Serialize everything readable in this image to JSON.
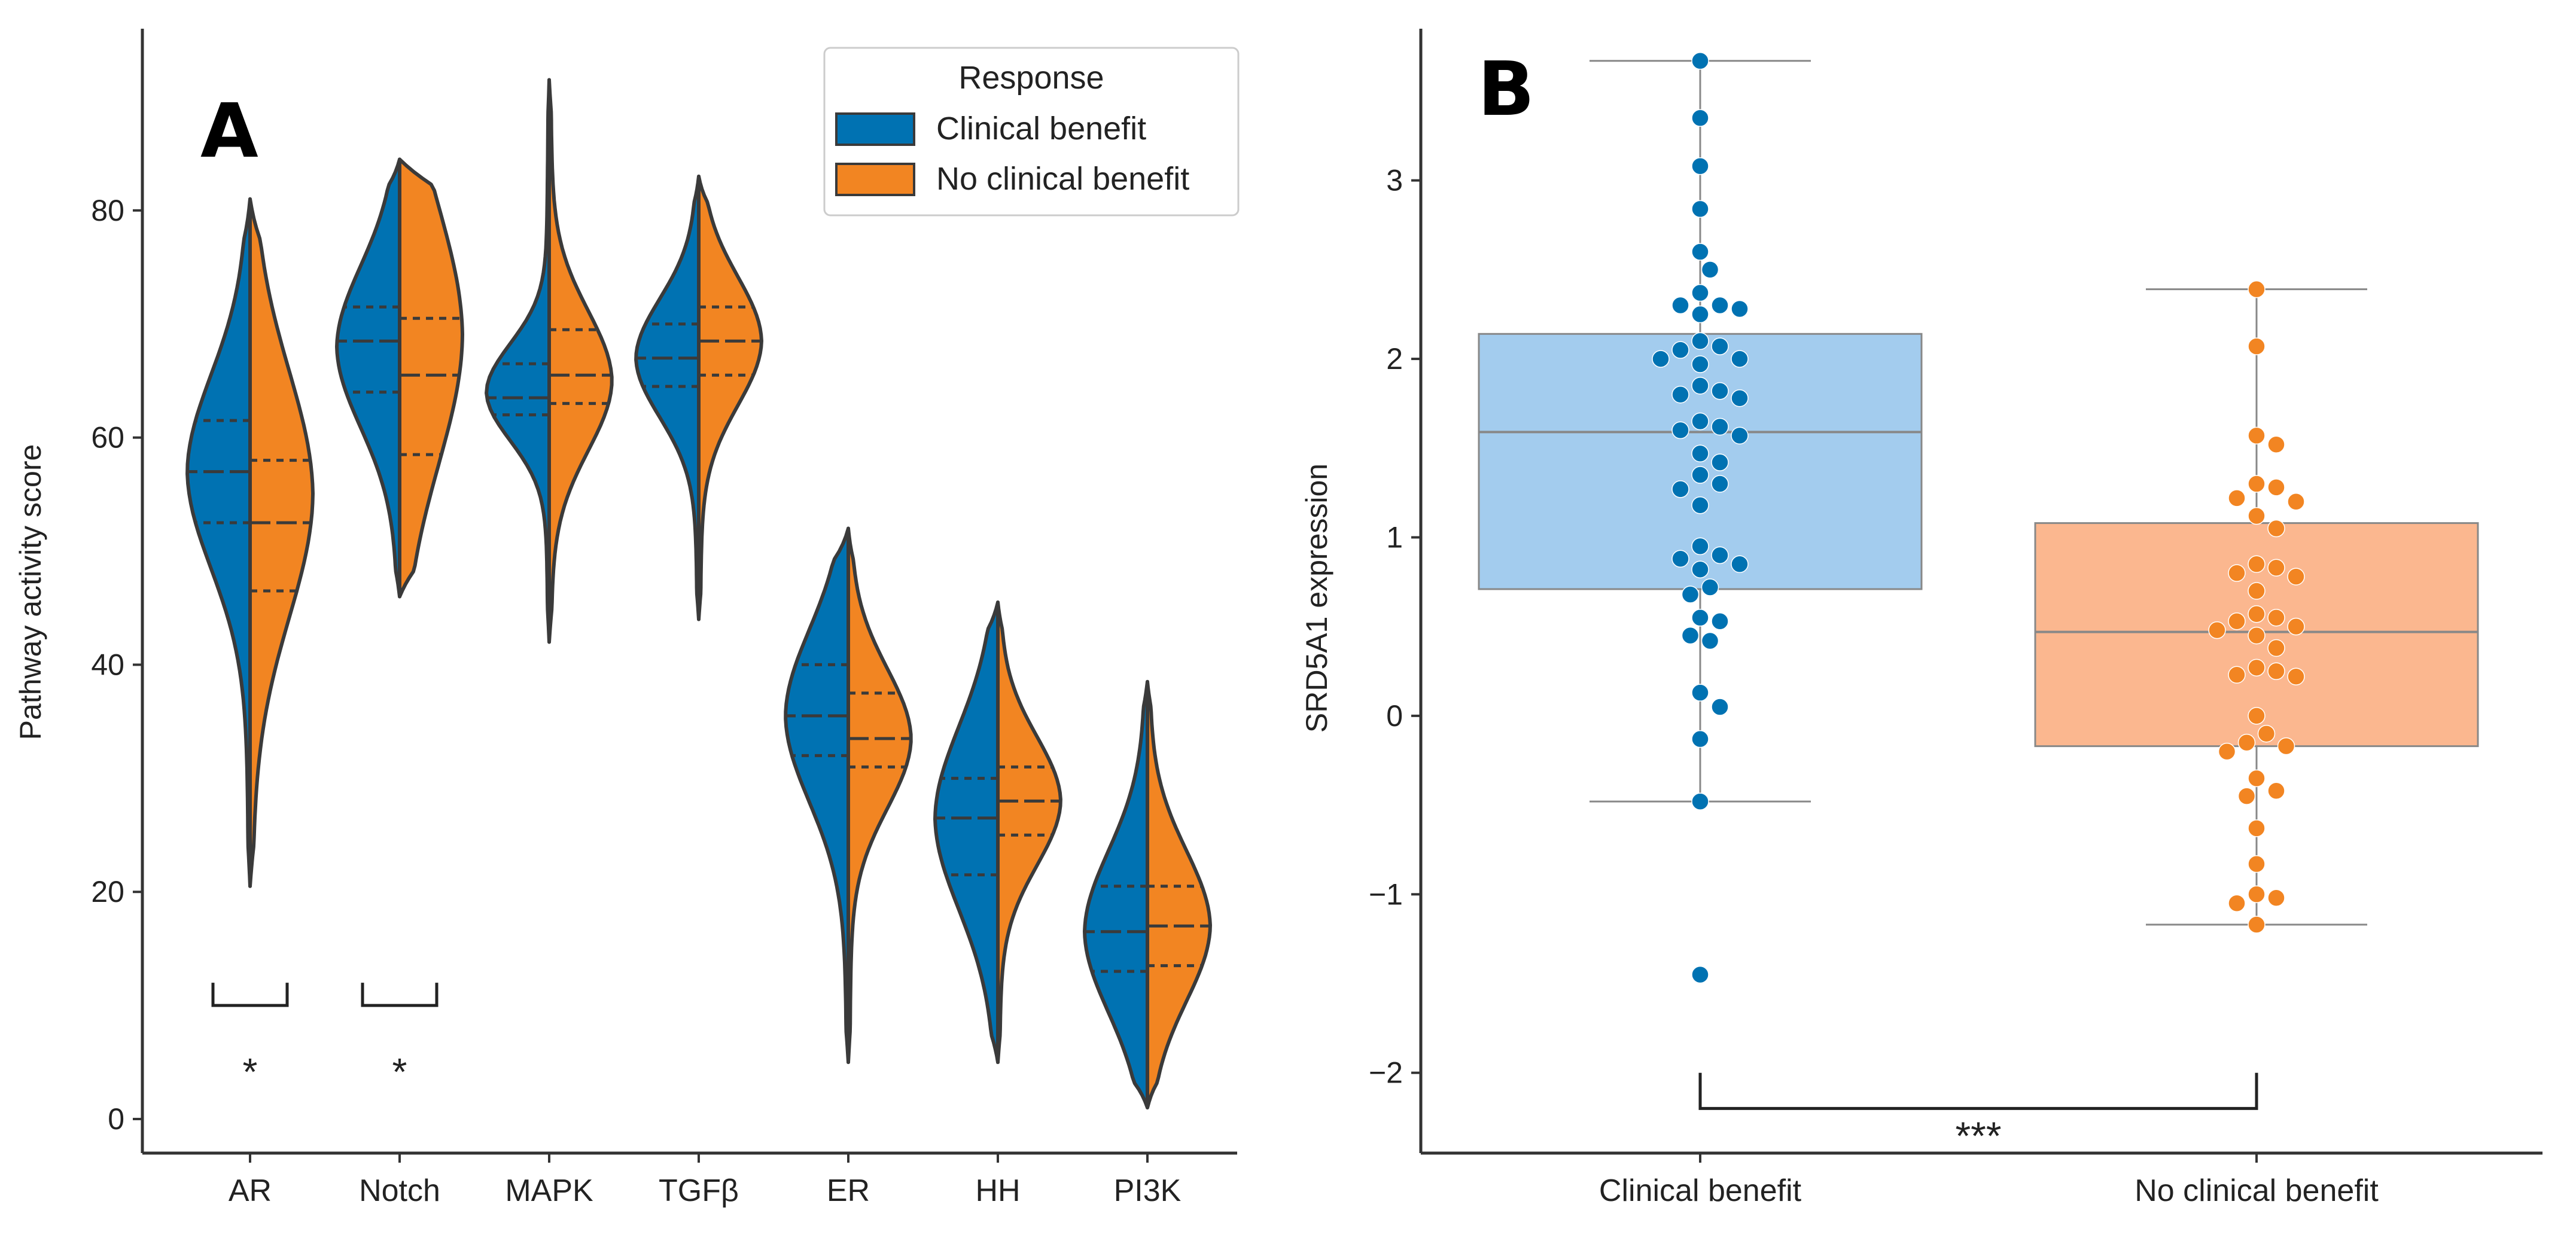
{
  "figure": {
    "panel_a_letter": "A",
    "panel_b_letter": "B"
  },
  "colors": {
    "clinical_benefit": "#0072B2",
    "no_clinical_benefit": "#F28522",
    "box_clinical_fill": "#A3CCEE",
    "box_no_clinical_fill": "#FBB78F",
    "outline": "#3a3a3a",
    "axis": "#333333"
  },
  "chart_data": [
    {
      "type": "violin",
      "panel": "A",
      "title": "",
      "xlabel": "",
      "ylabel": "Pathway activity score",
      "ylim": [
        -3,
        96
      ],
      "yticks": [
        0,
        20,
        40,
        60,
        80
      ],
      "categories": [
        "AR",
        "Notch",
        "MAPK",
        "TGFβ",
        "ER",
        "HH",
        "PI3K"
      ],
      "legend": {
        "title": "Response",
        "location": "top-right",
        "entries": [
          "Clinical benefit",
          "No clinical benefit"
        ]
      },
      "series": [
        {
          "name": "Clinical benefit",
          "min": [
            20.5,
            46,
            42,
            44,
            5,
            5,
            1
          ],
          "max": [
            81,
            84.5,
            91.5,
            83,
            52,
            45.5,
            38.5
          ],
          "q1": [
            52.5,
            64,
            62,
            64.5,
            32,
            21.5,
            13
          ],
          "median": [
            57,
            68.5,
            63.5,
            67,
            35.5,
            26.5,
            16.5
          ],
          "q3": [
            61.5,
            71.5,
            66.5,
            70,
            40,
            30,
            20.5
          ],
          "peak": [
            57,
            68,
            64,
            67,
            35.5,
            26.5,
            16.5
          ]
        },
        {
          "name": "No clinical benefit",
          "min": [
            20.5,
            46,
            42,
            44,
            5,
            5,
            1
          ],
          "max": [
            81,
            84.5,
            91.5,
            83,
            52,
            45.5,
            38.5
          ],
          "q1": [
            46.5,
            58.5,
            63,
            65.5,
            31,
            25,
            13.5
          ],
          "median": [
            52.5,
            65.5,
            65.5,
            68.5,
            33.5,
            28,
            17
          ],
          "q3": [
            58,
            70.5,
            69.5,
            71.5,
            37.5,
            31,
            20.5
          ],
          "peak": [
            55,
            69,
            65,
            68.5,
            33.5,
            28,
            17
          ]
        }
      ],
      "significance": [
        {
          "category": "AR",
          "label": "*"
        },
        {
          "category": "Notch",
          "label": "*"
        }
      ]
    },
    {
      "type": "box-swarm",
      "panel": "B",
      "title": "",
      "xlabel": "",
      "ylabel": "SRD5A1 expression",
      "ylim": [
        -2.45,
        3.85
      ],
      "yticks": [
        -2,
        -1,
        0,
        1,
        2,
        3
      ],
      "categories": [
        "Clinical benefit",
        "No clinical benefit"
      ],
      "series": [
        {
          "name": "Clinical benefit",
          "whisker_low": -0.48,
          "q1": 0.71,
          "median": 1.59,
          "q3": 2.14,
          "whisker_high": 3.67,
          "points": [
            3.67,
            3.35,
            3.08,
            2.84,
            2.6,
            2.5,
            2.37,
            2.3,
            2.3,
            2.28,
            2.25,
            2.1,
            2.07,
            2.05,
            2.0,
            2.0,
            1.97,
            1.85,
            1.82,
            1.8,
            1.78,
            1.65,
            1.62,
            1.6,
            1.57,
            1.47,
            1.42,
            1.35,
            1.3,
            1.27,
            1.18,
            0.95,
            0.9,
            0.88,
            0.85,
            0.82,
            0.72,
            0.68,
            0.55,
            0.53,
            0.45,
            0.42,
            0.13,
            0.05,
            -0.13,
            -0.48,
            -1.45
          ]
        },
        {
          "name": "No clinical benefit",
          "whisker_low": -1.17,
          "q1": -0.17,
          "median": 0.47,
          "q3": 1.08,
          "whisker_high": 2.39,
          "points": [
            2.39,
            2.07,
            1.57,
            1.52,
            1.3,
            1.28,
            1.22,
            1.2,
            1.12,
            1.05,
            0.85,
            0.83,
            0.8,
            0.78,
            0.7,
            0.57,
            0.55,
            0.53,
            0.5,
            0.48,
            0.45,
            0.38,
            0.27,
            0.25,
            0.23,
            0.22,
            0.0,
            -0.1,
            -0.15,
            -0.17,
            -0.2,
            -0.35,
            -0.42,
            -0.45,
            -0.63,
            -0.83,
            -1.0,
            -1.02,
            -1.05,
            -1.17
          ]
        }
      ],
      "significance": [
        {
          "between": [
            "Clinical benefit",
            "No clinical benefit"
          ],
          "label": "***"
        }
      ]
    }
  ]
}
